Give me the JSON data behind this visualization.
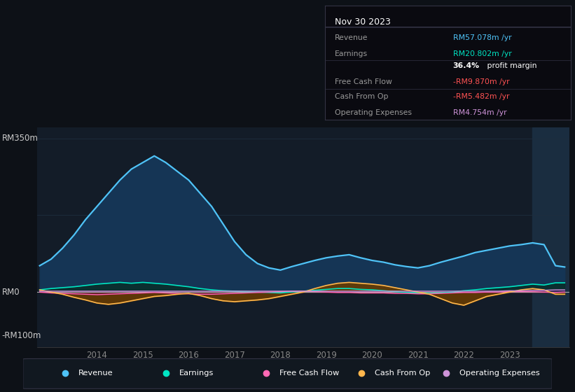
{
  "bg_color": "#0d1117",
  "plot_bg_color": "#131c28",
  "ylabel_top": "RM350m",
  "ylabel_zero": "RM0",
  "ylabel_bottom": "-RM100m",
  "ylim": [
    -125,
    375
  ],
  "xlim": [
    2012.7,
    2024.3
  ],
  "x_ticks": [
    2014,
    2015,
    2016,
    2017,
    2018,
    2019,
    2020,
    2021,
    2022,
    2023
  ],
  "info_box_title": "Nov 30 2023",
  "series": {
    "years": [
      2012.75,
      2013.0,
      2013.25,
      2013.5,
      2013.75,
      2014.0,
      2014.25,
      2014.5,
      2014.75,
      2015.0,
      2015.25,
      2015.5,
      2015.75,
      2016.0,
      2016.25,
      2016.5,
      2016.75,
      2017.0,
      2017.25,
      2017.5,
      2017.75,
      2018.0,
      2018.25,
      2018.5,
      2018.75,
      2019.0,
      2019.25,
      2019.5,
      2019.75,
      2020.0,
      2020.25,
      2020.5,
      2020.75,
      2021.0,
      2021.25,
      2021.5,
      2021.75,
      2022.0,
      2022.25,
      2022.5,
      2022.75,
      2023.0,
      2023.25,
      2023.5,
      2023.75,
      2024.0,
      2024.2
    ],
    "revenue": [
      60,
      75,
      100,
      130,
      165,
      195,
      225,
      255,
      280,
      295,
      310,
      295,
      275,
      255,
      225,
      195,
      155,
      115,
      85,
      65,
      55,
      50,
      58,
      65,
      72,
      78,
      82,
      85,
      78,
      72,
      68,
      62,
      58,
      55,
      60,
      68,
      75,
      82,
      90,
      95,
      100,
      105,
      108,
      112,
      108,
      60,
      57
    ],
    "earnings": [
      5,
      8,
      10,
      12,
      15,
      18,
      20,
      22,
      20,
      22,
      20,
      18,
      15,
      12,
      8,
      5,
      3,
      2,
      1,
      0,
      -1,
      -2,
      0,
      2,
      4,
      6,
      8,
      8,
      6,
      5,
      3,
      1,
      -1,
      -2,
      -3,
      -2,
      0,
      3,
      5,
      8,
      10,
      12,
      15,
      18,
      16,
      21,
      21
    ],
    "free_cash_flow": [
      0,
      -2,
      -3,
      -4,
      -5,
      -6,
      -5,
      -4,
      -3,
      -2,
      -1,
      -2,
      -3,
      -4,
      -5,
      -5,
      -4,
      -3,
      -2,
      -1,
      0,
      1,
      2,
      2,
      1,
      0,
      -1,
      -1,
      -2,
      -2,
      -2,
      -3,
      -3,
      -4,
      -4,
      -3,
      -2,
      -1,
      -1,
      0,
      0,
      1,
      1,
      1,
      0,
      -1,
      0
    ],
    "cash_from_op": [
      5,
      0,
      -5,
      -12,
      -18,
      -25,
      -28,
      -25,
      -20,
      -15,
      -10,
      -8,
      -5,
      -3,
      -8,
      -15,
      -20,
      -22,
      -20,
      -18,
      -15,
      -10,
      -5,
      0,
      8,
      15,
      20,
      22,
      20,
      18,
      15,
      10,
      5,
      0,
      -5,
      -15,
      -25,
      -30,
      -20,
      -10,
      -5,
      0,
      5,
      8,
      5,
      -5,
      -5
    ],
    "op_expenses": [
      2,
      2,
      2,
      2,
      2,
      2,
      2,
      2,
      2,
      2,
      2,
      2,
      2,
      2,
      2,
      2,
      2,
      2,
      2,
      2,
      2,
      2,
      2,
      2,
      2,
      2,
      2,
      2,
      2,
      2,
      2,
      2,
      2,
      2,
      2,
      2,
      2,
      2,
      2,
      2,
      2,
      3,
      3,
      4,
      4,
      5,
      5
    ]
  },
  "colors": {
    "revenue_line": "#4fc3f7",
    "earnings_line": "#00e5c3",
    "fcf_line": "#ff69b4",
    "cop_line": "#ffb74d",
    "oe_line": "#ce93d8",
    "revenue_fill": "#153555",
    "earnings_fill": "#0a2e2a",
    "fcf_fill": "#6b1a2a",
    "cop_fill": "#6b3d00",
    "oe_fill": "#3d1a5c",
    "zero_line": "#aaaaaa",
    "grid_line": "#1e2d3e",
    "highlight_fill": "#1a2d40"
  },
  "legend": [
    {
      "label": "Revenue",
      "color": "#4fc3f7"
    },
    {
      "label": "Earnings",
      "color": "#00e5c3"
    },
    {
      "label": "Free Cash Flow",
      "color": "#ff69b4"
    },
    {
      "label": "Cash From Op",
      "color": "#ffb74d"
    },
    {
      "label": "Operating Expenses",
      "color": "#ce93d8"
    }
  ]
}
